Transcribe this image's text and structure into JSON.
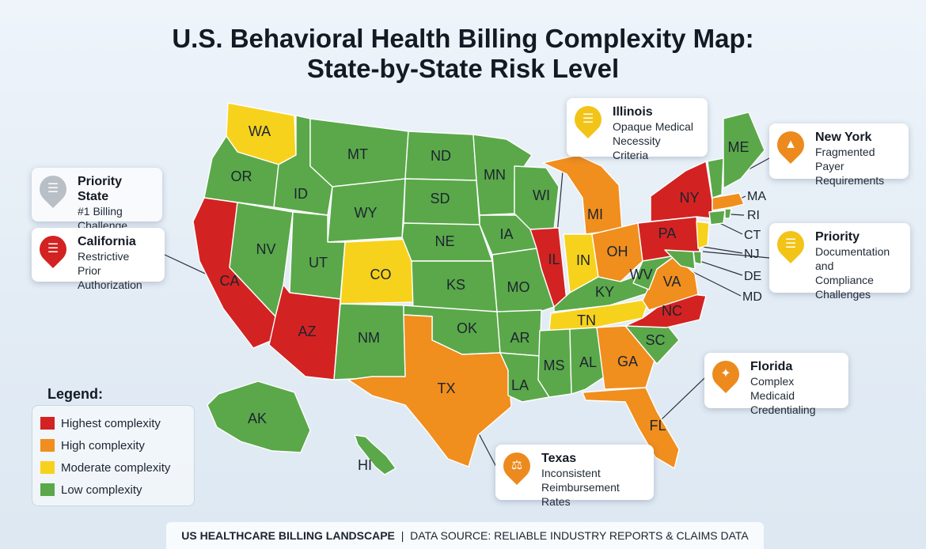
{
  "title_line1": "U.S. Behavioral Health Billing Complexity Map:",
  "title_line2": "State-by-State Risk Level",
  "colors": {
    "highest": "#d32222",
    "high": "#f08e1e",
    "moderate": "#f7d21c",
    "low": "#5aa84a"
  },
  "legend": {
    "title": "Legend:",
    "items": [
      {
        "label": "Highest complexity",
        "color": "#d32222"
      },
      {
        "label": "High complexity",
        "color": "#f08e1e"
      },
      {
        "label": "Moderate complexity",
        "color": "#f7d21c"
      },
      {
        "label": "Low complexity",
        "color": "#5aa84a"
      }
    ]
  },
  "states": [
    {
      "abbr": "WA",
      "level": "moderate"
    },
    {
      "abbr": "OR",
      "level": "low"
    },
    {
      "abbr": "CA",
      "level": "highest"
    },
    {
      "abbr": "ID",
      "level": "low"
    },
    {
      "abbr": "NV",
      "level": "low"
    },
    {
      "abbr": "MT",
      "level": "low"
    },
    {
      "abbr": "WY",
      "level": "low"
    },
    {
      "abbr": "UT",
      "level": "low"
    },
    {
      "abbr": "CO",
      "level": "moderate"
    },
    {
      "abbr": "AZ",
      "level": "highest"
    },
    {
      "abbr": "NM",
      "level": "low"
    },
    {
      "abbr": "ND",
      "level": "low"
    },
    {
      "abbr": "SD",
      "level": "low"
    },
    {
      "abbr": "NE",
      "level": "low"
    },
    {
      "abbr": "KS",
      "level": "low"
    },
    {
      "abbr": "OK",
      "level": "low"
    },
    {
      "abbr": "TX",
      "level": "high"
    },
    {
      "abbr": "MN",
      "level": "low"
    },
    {
      "abbr": "IA",
      "level": "low"
    },
    {
      "abbr": "MO",
      "level": "low"
    },
    {
      "abbr": "AR",
      "level": "low"
    },
    {
      "abbr": "LA",
      "level": "low"
    },
    {
      "abbr": "WI",
      "level": "low"
    },
    {
      "abbr": "IL",
      "level": "highest"
    },
    {
      "abbr": "MI",
      "level": "high"
    },
    {
      "abbr": "IN",
      "level": "moderate"
    },
    {
      "abbr": "OH",
      "level": "high"
    },
    {
      "abbr": "KY",
      "level": "low"
    },
    {
      "abbr": "TN",
      "level": "moderate"
    },
    {
      "abbr": "MS",
      "level": "low"
    },
    {
      "abbr": "AL",
      "level": "low"
    },
    {
      "abbr": "GA",
      "level": "high"
    },
    {
      "abbr": "FL",
      "level": "high"
    },
    {
      "abbr": "SC",
      "level": "low"
    },
    {
      "abbr": "NC",
      "level": "highest"
    },
    {
      "abbr": "VA",
      "level": "high"
    },
    {
      "abbr": "WV",
      "level": "low"
    },
    {
      "abbr": "PA",
      "level": "highest"
    },
    {
      "abbr": "NY",
      "level": "highest"
    },
    {
      "abbr": "ME",
      "level": "low"
    },
    {
      "abbr": "MA",
      "level": "high"
    },
    {
      "abbr": "RI",
      "level": "low"
    },
    {
      "abbr": "CT",
      "level": "low"
    },
    {
      "abbr": "NJ",
      "level": "moderate"
    },
    {
      "abbr": "DE",
      "level": "low"
    },
    {
      "abbr": "MD",
      "level": "low"
    },
    {
      "abbr": "AK",
      "level": "low"
    },
    {
      "abbr": "HI",
      "level": "low"
    }
  ],
  "callouts": {
    "priority_state": {
      "title": "Priority State",
      "desc1": "#1 Billing",
      "desc2": "Challenge"
    },
    "california": {
      "title": "California",
      "desc1": "Restrictive Prior",
      "desc2": "Authorization"
    },
    "illinois": {
      "title": "Illinois",
      "desc1": "Opaque Medical",
      "desc2": "Necessity Criteria"
    },
    "new_york": {
      "title": "New York",
      "desc1": "Fragmented Payer",
      "desc2": "Requirements"
    },
    "priority": {
      "title": "Priority",
      "desc1": "Documentation and",
      "desc2": "Compliance",
      "desc3": "Challenges"
    },
    "florida": {
      "title": "Florida",
      "desc1": "Complex Medicaid",
      "desc2": "Credentialing"
    },
    "texas": {
      "title": "Texas",
      "desc1": "Inconsistent",
      "desc2": "Reimbursement Rates"
    }
  },
  "footer": {
    "bold": "US HEALTHCARE BILLING LANDSCAPE",
    "sep": "|",
    "rest": "DATA SOURCE: RELIABLE INDUSTRY REPORTS & CLAIMS DATA"
  }
}
